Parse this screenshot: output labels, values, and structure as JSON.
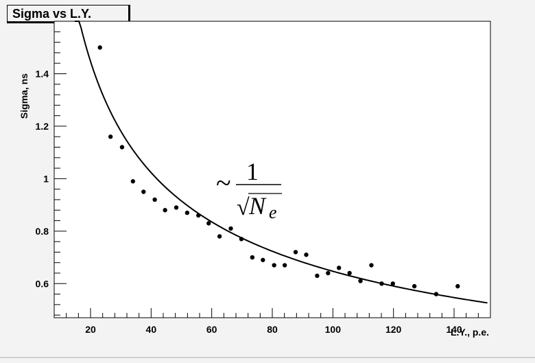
{
  "chart_data": {
    "type": "scatter",
    "title": "Sigma vs L.Y.",
    "xlabel": "L.Y., p.e.",
    "ylabel": "Sigma, ns",
    "xlim": [
      8,
      152
    ],
    "ylim": [
      0.47,
      1.6
    ],
    "x_ticks": [
      20,
      40,
      60,
      80,
      100,
      120,
      140
    ],
    "y_ticks": [
      0.6,
      0.8,
      1,
      1.2,
      1.4
    ],
    "x_tick_labels": [
      "20",
      "40",
      "60",
      "80",
      "100",
      "120",
      "140"
    ],
    "y_tick_labels": [
      "0.6",
      "0.8",
      "1",
      "1.2",
      "1.4"
    ],
    "grid": false,
    "points": {
      "x": [
        23.1,
        26.6,
        30.4,
        34.0,
        37.5,
        41.2,
        44.6,
        48.3,
        51.9,
        55.6,
        59.0,
        62.6,
        66.3,
        69.8,
        73.4,
        76.9,
        80.6,
        84.1,
        87.7,
        91.2,
        94.8,
        98.4,
        102.0,
        105.5,
        109.1,
        112.7,
        116.1,
        119.8,
        126.9,
        134.1,
        141.2
      ],
      "y": [
        1.5,
        1.16,
        1.12,
        0.99,
        0.95,
        0.92,
        0.88,
        0.89,
        0.87,
        0.86,
        0.83,
        0.78,
        0.81,
        0.77,
        0.7,
        0.69,
        0.67,
        0.67,
        0.72,
        0.71,
        0.63,
        0.64,
        0.66,
        0.64,
        0.61,
        0.67,
        0.6,
        0.6,
        0.59,
        0.56,
        0.59
      ]
    },
    "fit": {
      "formula": "sigma = a / sqrt(N_e)",
      "a": 6.47,
      "x_range": [
        14.8,
        151
      ]
    },
    "annotation": {
      "tilde": "~",
      "numerator": "1",
      "radical": "√",
      "denominator_main": "N",
      "denominator_sub": "e"
    }
  }
}
